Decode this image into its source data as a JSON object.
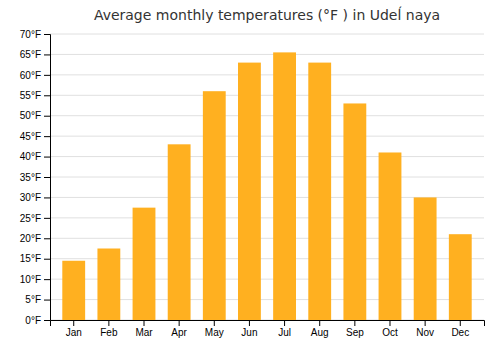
{
  "chart_data": {
    "type": "bar",
    "title": "Average monthly temperatures (°F ) in Udeĺ naya",
    "categories": [
      "Jan",
      "Feb",
      "Mar",
      "Apr",
      "May",
      "Jun",
      "Jul",
      "Aug",
      "Sep",
      "Oct",
      "Nov",
      "Dec"
    ],
    "values": [
      14.5,
      17.5,
      27.5,
      43,
      56,
      63,
      65.5,
      63,
      53,
      41,
      30,
      21
    ],
    "color": "#FFB020",
    "ylim": [
      0,
      70
    ],
    "yticks": [
      {
        "value": 0,
        "label": "0°F"
      },
      {
        "value": 5,
        "label": "5°F"
      },
      {
        "value": 10,
        "label": "10°F"
      },
      {
        "value": 15,
        "label": "15°F"
      },
      {
        "value": 20,
        "label": "20°F"
      },
      {
        "value": 25,
        "label": "25°F"
      },
      {
        "value": 30,
        "label": "30°F"
      },
      {
        "value": 35,
        "label": "35°F"
      },
      {
        "value": 40,
        "label": "40°F"
      },
      {
        "value": 45,
        "label": "45°F"
      },
      {
        "value": 50,
        "label": "50°F"
      },
      {
        "value": 55,
        "label": "55°F"
      },
      {
        "value": 60,
        "label": "60°F"
      },
      {
        "value": 65,
        "label": "65°F"
      },
      {
        "value": 70,
        "label": "70°F"
      }
    ],
    "grid": true
  }
}
